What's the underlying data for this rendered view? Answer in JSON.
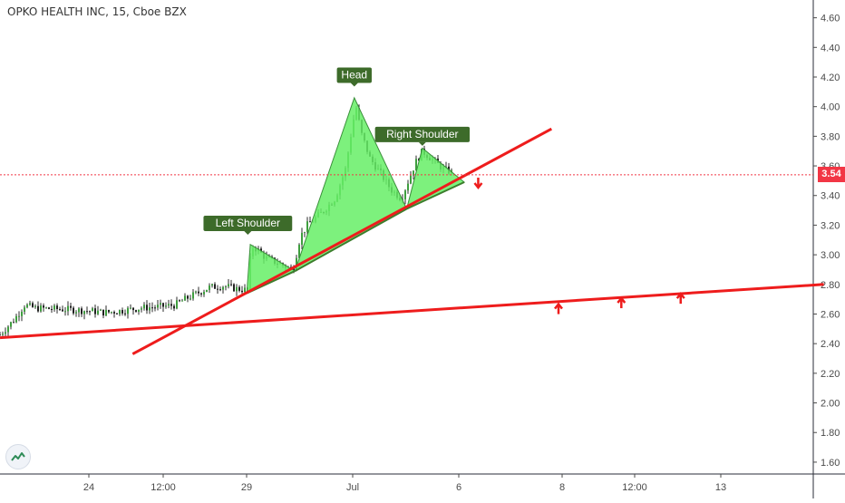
{
  "header": {
    "symbol": "OPKO HEALTH INC, 15, Cboe BZX"
  },
  "price_badge": "3.54",
  "colors": {
    "trend_line": "#ee1c1c",
    "pattern_fill": "#66ee66",
    "pattern_stroke": "#3a8f3a",
    "label_bg": "#3d6b2a",
    "candle_up": "#3f9f3f",
    "candle_down": "#222222",
    "last_price_line": "#f23645"
  },
  "icons": [
    "tradingview-logo-icon",
    "arrow-down-icon",
    "arrow-up-icon"
  ],
  "chart_data": {
    "type": "line",
    "y_axis": {
      "range": [
        1.52,
        4.72
      ],
      "ticks": [
        "1.60",
        "1.80",
        "2.00",
        "2.20",
        "2.40",
        "2.60",
        "2.80",
        "3.00",
        "3.20",
        "3.40",
        "3.60",
        "3.80",
        "4.00",
        "4.20",
        "4.40",
        "4.60"
      ]
    },
    "x_axis": {
      "ticks": [
        "24",
        "12:00",
        "29",
        "Jul",
        "6",
        "8",
        "12:00",
        "13"
      ]
    },
    "price_series": {
      "name": "",
      "anchors": [
        [
          0.0,
          2.46
        ],
        [
          0.04,
          2.56
        ],
        [
          0.07,
          2.66
        ],
        [
          0.1,
          2.64
        ],
        [
          0.2,
          2.63
        ],
        [
          0.26,
          2.62
        ],
        [
          0.3,
          2.61
        ],
        [
          0.34,
          2.62
        ],
        [
          0.4,
          2.64
        ],
        [
          0.46,
          2.65
        ],
        [
          0.5,
          2.66
        ],
        [
          0.53,
          2.7
        ],
        [
          0.6,
          2.78
        ],
        [
          0.64,
          2.79
        ],
        [
          0.68,
          2.77
        ],
        [
          0.71,
          2.76
        ],
        [
          0.72,
          3.06
        ],
        [
          0.74,
          3.03
        ],
        [
          0.76,
          2.98
        ],
        [
          0.78,
          2.96
        ],
        [
          0.81,
          2.93
        ],
        [
          0.84,
          2.9
        ],
        [
          0.86,
          3.12
        ],
        [
          0.88,
          3.2
        ],
        [
          0.92,
          3.28
        ],
        [
          0.96,
          3.38
        ],
        [
          0.99,
          3.58
        ],
        [
          1.01,
          3.88
        ],
        [
          1.02,
          4.0
        ],
        [
          1.035,
          3.82
        ],
        [
          1.06,
          3.65
        ],
        [
          1.09,
          3.55
        ],
        [
          1.12,
          3.44
        ],
        [
          1.15,
          3.38
        ],
        [
          1.17,
          3.5
        ],
        [
          1.19,
          3.62
        ],
        [
          1.21,
          3.7
        ],
        [
          1.24,
          3.64
        ],
        [
          1.27,
          3.58
        ],
        [
          1.29,
          3.56
        ],
        [
          1.3,
          3.55
        ]
      ]
    },
    "last_price": 3.54,
    "trend_lines": [
      {
        "from": [
          0.38,
          2.33
        ],
        "to": [
          1.58,
          3.85
        ]
      },
      {
        "from": [
          0.0,
          2.44
        ],
        "to": [
          2.36,
          2.8
        ]
      }
    ],
    "pattern": {
      "type": "head-and-shoulders",
      "triangles": [
        [
          [
            0.707,
            2.74
          ],
          [
            0.717,
            3.07
          ],
          [
            0.845,
            2.89
          ]
        ],
        [
          [
            0.845,
            2.89
          ],
          [
            1.015,
            4.06
          ],
          [
            1.165,
            3.31
          ]
        ],
        [
          [
            1.165,
            3.31
          ],
          [
            1.21,
            3.72
          ],
          [
            1.33,
            3.49
          ]
        ]
      ],
      "labels": [
        {
          "text": "Left Shoulder",
          "at": [
            0.71,
            3.16
          ]
        },
        {
          "text": "Head",
          "at": [
            1.015,
            4.16
          ]
        },
        {
          "text": "Right Shoulder",
          "at": [
            1.21,
            3.76
          ]
        }
      ]
    },
    "arrows": [
      {
        "direction": "down",
        "at": [
          1.37,
          3.49
        ]
      },
      {
        "direction": "up",
        "at": [
          1.6,
          2.63
        ]
      },
      {
        "direction": "up",
        "at": [
          1.78,
          2.67
        ]
      },
      {
        "direction": "up",
        "at": [
          1.95,
          2.7
        ]
      }
    ]
  }
}
